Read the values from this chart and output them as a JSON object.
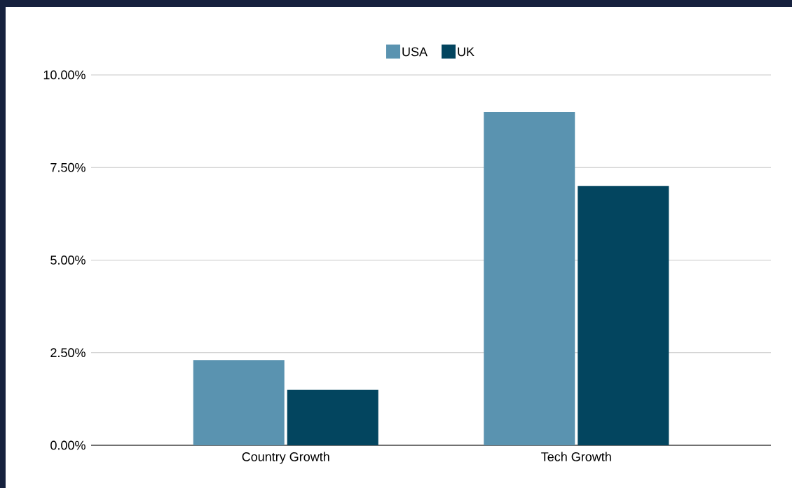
{
  "chart_data": {
    "type": "bar",
    "categories": [
      "Country Growth",
      "Tech Growth"
    ],
    "series": [
      {
        "name": "USA",
        "color": "#5a93b0",
        "values": [
          2.3,
          9.0
        ]
      },
      {
        "name": "UK",
        "color": "#03455f",
        "values": [
          1.5,
          7.0
        ]
      }
    ],
    "ylim": [
      0,
      10
    ],
    "yticks": [
      {
        "value": 0,
        "label": "0.00%"
      },
      {
        "value": 2.5,
        "label": "2.50%"
      },
      {
        "value": 5,
        "label": "5.00%"
      },
      {
        "value": 7.5,
        "label": "7.50%"
      },
      {
        "value": 10,
        "label": "10.00%"
      }
    ],
    "grid": "y",
    "legend": "top"
  }
}
